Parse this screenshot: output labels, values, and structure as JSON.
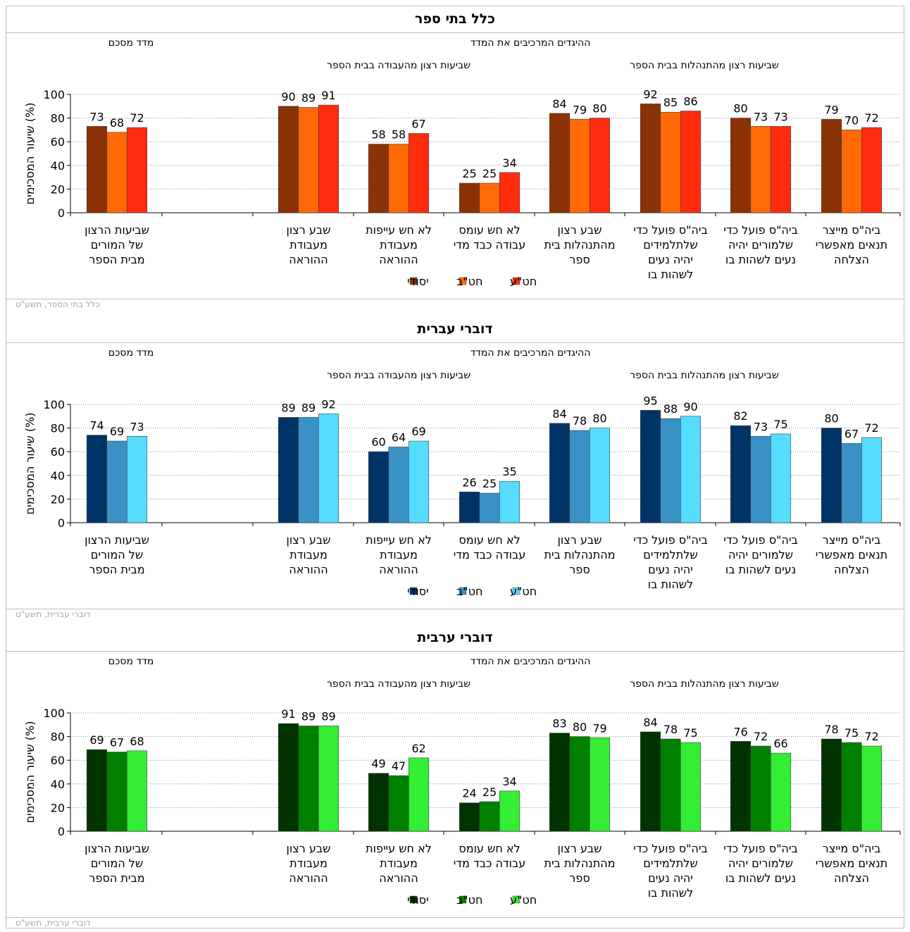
{
  "chart_data": [
    {
      "type": "bar",
      "title": "כלל בתי ספר",
      "summary_header": "מדד מסכם",
      "items_header": "ההיגדים המרכיבים את המדד",
      "group_labels": [
        "שביעות רצון מהעבודה בבית הספר",
        "שביעות רצון מהתנהלות בבית הספר"
      ],
      "ylabel": "שיעור המסכימים (%)",
      "ylim": [
        0,
        100
      ],
      "yticks": [
        "0",
        "20",
        "40",
        "60",
        "80",
        "100"
      ],
      "grid": true,
      "legend_position": "bottom",
      "categories": [
        [
          "שביעות הרצון",
          "של המורים",
          "מבית הספר"
        ],
        [
          "שבע רצון",
          "מעבודת",
          "ההוראה"
        ],
        [
          "לא חש עייפות",
          "מעבודת",
          "ההוראה"
        ],
        [
          "לא חש עומס",
          "עבודה כבד מדי"
        ],
        [
          "שבע רצון",
          "מהתנהלות בית",
          "ספר"
        ],
        [
          "ביה\"ס פועל כדי",
          "שלתלמידים",
          "יהיה נעים",
          "לשהות בו"
        ],
        [
          "ביה\"ס פועל כדי",
          "שלמורים יהיה",
          "נעים לשהות בו"
        ],
        [
          "ביה\"ס מייצר",
          "תנאים מאפשרי",
          "הצלחה"
        ]
      ],
      "series": [
        {
          "name": "יסודי",
          "values": [
            73,
            90,
            58,
            25,
            84,
            92,
            80,
            79
          ]
        },
        {
          "name": "חט\"ב",
          "values": [
            68,
            89,
            58,
            25,
            79,
            85,
            73,
            70
          ]
        },
        {
          "name": "חט\"ע",
          "values": [
            72,
            91,
            67,
            34,
            80,
            86,
            73,
            72
          ]
        }
      ],
      "colors": [
        "#8B3207",
        "#FF6A06",
        "#FF2C0E"
      ],
      "footer": "כלל בתי הספר, תשע\"ט"
    },
    {
      "type": "bar",
      "title": "דוברי עברית",
      "summary_header": "מדד מסכם",
      "items_header": "ההיגדים המרכיבים את המדד",
      "group_labels": [
        "שביעות רצון מהעבודה בבית הספר",
        "שביעות רצון מהתנהלות בבית הספר"
      ],
      "ylabel": "שיעור המסכימים (%)",
      "ylim": [
        0,
        100
      ],
      "yticks": [
        "0",
        "20",
        "40",
        "60",
        "80",
        "100"
      ],
      "grid": true,
      "legend_position": "bottom",
      "categories": [
        [
          "שביעות הרצון",
          "של המורים",
          "מבית הספר"
        ],
        [
          "שבע רצון",
          "מעבודת",
          "ההוראה"
        ],
        [
          "לא חש עייפות",
          "מעבודת",
          "ההוראה"
        ],
        [
          "לא חש עומס",
          "עבודה כבד מדי"
        ],
        [
          "שבע רצון",
          "מהתנהלות בית",
          "ספר"
        ],
        [
          "ביה\"ס פועל כדי",
          "שלתלמידים",
          "יהיה נעים",
          "לשהות בו"
        ],
        [
          "ביה\"ס פועל כדי",
          "שלמורים יהיה",
          "נעים לשהות בו"
        ],
        [
          "ביה\"ס מייצר",
          "תנאים מאפשרי",
          "הצלחה"
        ]
      ],
      "series": [
        {
          "name": "יסודי",
          "values": [
            74,
            89,
            60,
            26,
            84,
            95,
            82,
            80
          ]
        },
        {
          "name": "חט\"ב",
          "values": [
            69,
            89,
            64,
            25,
            78,
            88,
            73,
            67
          ]
        },
        {
          "name": "חט\"ע",
          "values": [
            73,
            92,
            69,
            35,
            80,
            90,
            75,
            72
          ]
        }
      ],
      "colors": [
        "#003366",
        "#3A91C6",
        "#55DCFF"
      ],
      "footer": "דוברי עברית, תשע\"ט"
    },
    {
      "type": "bar",
      "title": "דוברי ערבית",
      "summary_header": "מדד מסכם",
      "items_header": "ההיגדים המרכיבים את המדד",
      "group_labels": [
        "שביעות רצון מהעבודה בבית הספר",
        "שביעות רצון מהתנהלות בבית הספר"
      ],
      "ylabel": "שיעור המסכימים (%)",
      "ylim": [
        0,
        100
      ],
      "yticks": [
        "0",
        "20",
        "40",
        "60",
        "80",
        "100"
      ],
      "grid": true,
      "legend_position": "bottom",
      "categories": [
        [
          "שביעות הרצון",
          "של המורים",
          "מבית הספר"
        ],
        [
          "שבע רצון",
          "מעבודת",
          "ההוראה"
        ],
        [
          "לא חש עייפות",
          "מעבודת",
          "ההוראה"
        ],
        [
          "לא חש עומס",
          "עבודה כבד מדי"
        ],
        [
          "שבע רצון",
          "מהתנהלות בית",
          "ספר"
        ],
        [
          "ביה\"ס פועל כדי",
          "שלתלמידים",
          "יהיה נעים",
          "לשהות בו"
        ],
        [
          "ביה\"ס פועל כדי",
          "שלמורים יהיה",
          "נעים לשהות בו"
        ],
        [
          "ביה\"ס מייצר",
          "תנאים מאפשרי",
          "הצלחה"
        ]
      ],
      "series": [
        {
          "name": "יסודי",
          "values": [
            69,
            91,
            49,
            24,
            83,
            84,
            76,
            78
          ]
        },
        {
          "name": "חט\"ב",
          "values": [
            67,
            89,
            47,
            25,
            80,
            78,
            72,
            75
          ]
        },
        {
          "name": "חט\"ע",
          "values": [
            68,
            89,
            62,
            34,
            79,
            75,
            66,
            72
          ]
        }
      ],
      "colors": [
        "#003300",
        "#008000",
        "#33EE33"
      ],
      "footer": "דוברי ערבית, תשע\"ט"
    }
  ]
}
